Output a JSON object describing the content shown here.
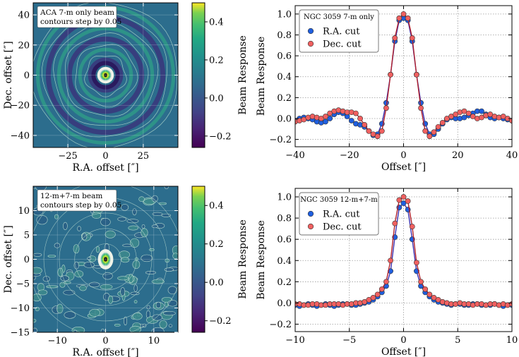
{
  "chart_data": [
    {
      "type": "heatmap",
      "panel": "top-left",
      "annotation": [
        "ACA 7-m only beam",
        "contours step by 0.05"
      ],
      "xlabel": "R.A. offset [″]",
      "ylabel": "Dec. offset [″]",
      "xlim": [
        -48,
        48
      ],
      "ylim": [
        -48,
        48
      ],
      "xticks": [
        -25,
        0,
        25
      ],
      "yticks": [
        -40,
        -20,
        0,
        20,
        40
      ],
      "xtick_labels": [
        "−25",
        "0",
        "25"
      ],
      "ytick_labels": [
        "−40",
        "−20",
        "0",
        "20",
        "40"
      ],
      "colorbar": {
        "label": "Beam Response",
        "vmin": -0.26,
        "vmax": 0.5,
        "ticks": [
          0.4,
          0.2,
          0.0,
          -0.2
        ],
        "tick_labels": [
          "0.4",
          "0.2",
          "0.0",
          "−0.2"
        ],
        "colormap": "viridis"
      },
      "contour_step": 0.05,
      "sidelobe_rings_arcsec": [
        10,
        17,
        24,
        31,
        38,
        45
      ]
    },
    {
      "type": "line",
      "panel": "top-right",
      "legend_title": "NGC 3059 7-m only",
      "legend_placement": "upper-left",
      "xlabel": "Offset [″]",
      "ylabel": "Beam Response",
      "xlim": [
        -40,
        40
      ],
      "ylim": [
        -0.27,
        1.08
      ],
      "xticks": [
        -40,
        -20,
        0,
        20,
        40
      ],
      "yticks": [
        -0.2,
        0.0,
        0.2,
        0.4,
        0.6,
        0.8,
        1.0
      ],
      "xtick_labels": [
        "−40",
        "−20",
        "0",
        "20",
        "40"
      ],
      "ytick_labels": [
        "−0.2",
        "0.0",
        "0.2",
        "0.4",
        "0.6",
        "0.8",
        "1.0"
      ],
      "grid": true,
      "series": [
        {
          "name": "R.A. cut",
          "color": "#1f5fe0",
          "line_color": "#3b30b0",
          "x": [
            -40,
            -38.4,
            -36.8,
            -35.2,
            -33.6,
            -32,
            -30.4,
            -28.8,
            -27.2,
            -25.6,
            -24,
            -22.4,
            -20.8,
            -19.2,
            -17.6,
            -16,
            -14.4,
            -12.8,
            -11.2,
            -9.6,
            -8,
            -6.4,
            -4.8,
            -3.2,
            -1.6,
            0,
            1.6,
            3.2,
            4.8,
            6.4,
            8,
            9.6,
            11.2,
            12.8,
            14.4,
            16,
            17.6,
            19.2,
            20.8,
            22.4,
            24,
            25.6,
            27.2,
            28.8,
            30.4,
            32,
            33.6,
            35.2,
            36.8,
            38.4,
            40
          ],
          "y": [
            -0.02,
            0.0,
            0.01,
            0.0,
            -0.01,
            -0.03,
            -0.04,
            -0.03,
            0.0,
            0.04,
            0.06,
            0.05,
            0.02,
            -0.02,
            -0.05,
            -0.06,
            -0.08,
            -0.12,
            -0.16,
            -0.15,
            -0.05,
            0.15,
            0.42,
            0.74,
            0.94,
            0.96,
            0.94,
            0.74,
            0.42,
            0.15,
            -0.05,
            -0.15,
            -0.15,
            -0.1,
            -0.05,
            -0.01,
            0.01,
            0.0,
            0.0,
            0.01,
            0.03,
            0.05,
            0.07,
            0.07,
            0.04,
            0.01,
            0.0,
            0.01,
            0.0,
            -0.01,
            -0.02
          ]
        },
        {
          "name": "Dec. cut",
          "color": "#f06060",
          "line_color": "#b0202c",
          "x": [
            -40,
            -38.4,
            -36.8,
            -35.2,
            -33.6,
            -32,
            -30.4,
            -28.8,
            -27.2,
            -25.6,
            -24,
            -22.4,
            -20.8,
            -19.2,
            -17.6,
            -16,
            -14.4,
            -12.8,
            -11.2,
            -9.6,
            -8,
            -6.4,
            -4.8,
            -3.2,
            -1.6,
            0,
            1.6,
            3.2,
            4.8,
            6.4,
            8,
            9.6,
            11.2,
            12.8,
            14.4,
            16,
            17.6,
            19.2,
            20.8,
            22.4,
            24,
            25.6,
            27.2,
            28.8,
            30.4,
            32,
            33.6,
            35.2,
            36.8,
            38.4,
            40
          ],
          "y": [
            -0.03,
            -0.02,
            -0.01,
            0.01,
            0.02,
            0.01,
            0.0,
            0.02,
            0.05,
            0.07,
            0.08,
            0.07,
            0.06,
            0.06,
            0.05,
            0.0,
            -0.06,
            -0.12,
            -0.15,
            -0.17,
            -0.12,
            0.1,
            0.42,
            0.77,
            0.96,
            1.0,
            0.96,
            0.77,
            0.42,
            0.1,
            -0.12,
            -0.17,
            -0.13,
            -0.08,
            -0.04,
            0.0,
            0.02,
            0.04,
            0.06,
            0.07,
            0.05,
            0.02,
            0.0,
            0.01,
            0.03,
            0.04,
            0.02,
            0.01,
            0.02,
            0.0,
            -0.02
          ]
        }
      ]
    },
    {
      "type": "heatmap",
      "panel": "bottom-left",
      "annotation": [
        "12-m+7-m beam",
        "contours step by 0.05"
      ],
      "xlabel": "R.A. offset [″]",
      "ylabel": "Dec. offset [″]",
      "xlim": [
        -15,
        15
      ],
      "ylim": [
        -15,
        15
      ],
      "xticks": [
        -10,
        0,
        10
      ],
      "yticks": [
        -15,
        -10,
        -5,
        0,
        5,
        10
      ],
      "xtick_labels": [
        "−10",
        "0",
        "10"
      ],
      "ytick_labels": [
        "−15",
        "−10",
        "−5",
        "0",
        "5",
        "10"
      ],
      "colorbar": {
        "label": "Beam Response",
        "vmin": -0.26,
        "vmax": 0.5,
        "ticks": [
          0.4,
          0.2,
          0.0,
          -0.2
        ],
        "tick_labels": [
          "0.4",
          "0.2",
          "0.0",
          "−0.2"
        ],
        "colormap": "viridis"
      },
      "contour_step": 0.05
    },
    {
      "type": "line",
      "panel": "bottom-right",
      "legend_title": "NGC 3059 12-m+7-m",
      "legend_placement": "upper-left",
      "xlabel": "Offset [″]",
      "ylabel": "Beam Response",
      "xlim": [
        -10,
        10
      ],
      "ylim": [
        -0.27,
        1.08
      ],
      "xticks": [
        -10,
        -5,
        0,
        5,
        10
      ],
      "yticks": [
        -0.2,
        0.0,
        0.2,
        0.4,
        0.6,
        0.8,
        1.0
      ],
      "xtick_labels": [
        "−10",
        "−5",
        "0",
        "5",
        "10"
      ],
      "ytick_labels": [
        "−0.2",
        "0.0",
        "0.2",
        "0.4",
        "0.6",
        "0.8",
        "1.0"
      ],
      "grid": true,
      "series": [
        {
          "name": "R.A. cut",
          "color": "#1f5fe0",
          "line_color": "#3b30b0",
          "x": [
            -10,
            -9.6,
            -9.2,
            -8.8,
            -8.4,
            -8,
            -7.6,
            -7.2,
            -6.8,
            -6.4,
            -6,
            -5.6,
            -5.2,
            -4.8,
            -4.4,
            -4,
            -3.6,
            -3.2,
            -2.8,
            -2.4,
            -2,
            -1.6,
            -1.2,
            -0.8,
            -0.4,
            0,
            0.4,
            0.8,
            1.2,
            1.6,
            2,
            2.4,
            2.8,
            3.2,
            3.6,
            4,
            4.4,
            4.8,
            5.2,
            5.6,
            6,
            6.4,
            6.8,
            7.2,
            7.6,
            8,
            8.4,
            8.8,
            9.2,
            9.6,
            10
          ],
          "y": [
            -0.02,
            -0.03,
            -0.02,
            -0.01,
            -0.02,
            -0.03,
            -0.02,
            -0.01,
            -0.02,
            -0.03,
            -0.02,
            -0.01,
            -0.01,
            -0.02,
            -0.02,
            -0.01,
            0.0,
            0.01,
            0.03,
            0.06,
            0.1,
            0.16,
            0.3,
            0.62,
            0.9,
            0.94,
            0.88,
            0.6,
            0.3,
            0.16,
            0.1,
            0.06,
            0.03,
            0.01,
            0.0,
            -0.01,
            -0.02,
            -0.01,
            -0.01,
            -0.02,
            -0.02,
            -0.01,
            -0.01,
            -0.02,
            -0.02,
            -0.02,
            -0.01,
            -0.02,
            -0.03,
            -0.02,
            -0.02
          ]
        },
        {
          "name": "Dec. cut",
          "color": "#f06060",
          "line_color": "#b0202c",
          "x": [
            -10,
            -9.6,
            -9.2,
            -8.8,
            -8.4,
            -8,
            -7.6,
            -7.2,
            -6.8,
            -6.4,
            -6,
            -5.6,
            -5.2,
            -4.8,
            -4.4,
            -4,
            -3.6,
            -3.2,
            -2.8,
            -2.4,
            -2,
            -1.6,
            -1.2,
            -0.8,
            -0.4,
            0,
            0.4,
            0.8,
            1.2,
            1.6,
            2,
            2.4,
            2.8,
            3.2,
            3.6,
            4,
            4.4,
            4.8,
            5.2,
            5.6,
            6,
            6.4,
            6.8,
            7.2,
            7.6,
            8,
            8.4,
            8.8,
            9.2,
            9.6,
            10
          ],
          "y": [
            -0.01,
            -0.01,
            -0.02,
            -0.02,
            -0.01,
            -0.01,
            -0.02,
            -0.02,
            -0.01,
            -0.01,
            -0.01,
            -0.02,
            -0.01,
            -0.01,
            0.0,
            0.0,
            0.01,
            0.03,
            0.05,
            0.08,
            0.13,
            0.2,
            0.4,
            0.75,
            0.97,
            1.0,
            0.96,
            0.72,
            0.38,
            0.2,
            0.13,
            0.08,
            0.05,
            0.03,
            0.01,
            0.0,
            -0.01,
            -0.01,
            0.0,
            -0.01,
            -0.01,
            -0.02,
            -0.01,
            -0.01,
            -0.02,
            -0.01,
            -0.01,
            -0.02,
            -0.01,
            -0.02,
            -0.01
          ]
        }
      ]
    }
  ]
}
